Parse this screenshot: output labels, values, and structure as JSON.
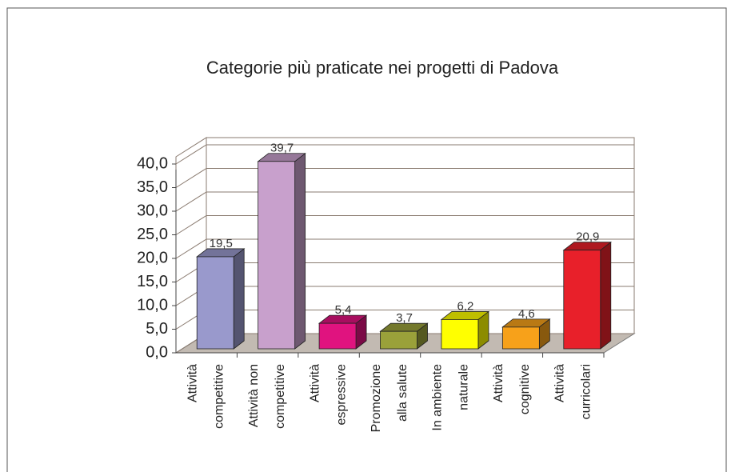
{
  "chart_data": {
    "type": "bar3d",
    "title": "Categorie più praticate nei progetti di Padova",
    "categories": [
      "Attività\ncompetitive",
      "Attività non\ncompetitive",
      "Attività\nespressive",
      "Promozione\nalla salute",
      "In ambiente\nnaturale",
      "Attività\ncognitive",
      "Attività\ncurricolari"
    ],
    "values": [
      19.5,
      39.7,
      5.4,
      3.7,
      6.2,
      4.6,
      20.9
    ],
    "value_labels": [
      "19,5",
      "39,7",
      "5,4",
      "3,7",
      "6,2",
      "4,6",
      "20,9"
    ],
    "colors": [
      "#9999cc",
      "#c8a0cc",
      "#e0137f",
      "#9aa13a",
      "#ffff00",
      "#f7a11a",
      "#e8202a"
    ],
    "ylim": [
      0,
      40
    ],
    "yticks": [
      {
        "value": 0,
        "label": "0,0"
      },
      {
        "value": 5,
        "label": "5,0"
      },
      {
        "value": 10,
        "label": "10,0"
      },
      {
        "value": 15,
        "label": "15,0"
      },
      {
        "value": 20,
        "label": "20,0"
      },
      {
        "value": 25,
        "label": "25,0"
      },
      {
        "value": 30,
        "label": "30,0"
      },
      {
        "value": 35,
        "label": "35,0"
      },
      {
        "value": 40,
        "label": "40,0"
      }
    ],
    "grid": true
  }
}
